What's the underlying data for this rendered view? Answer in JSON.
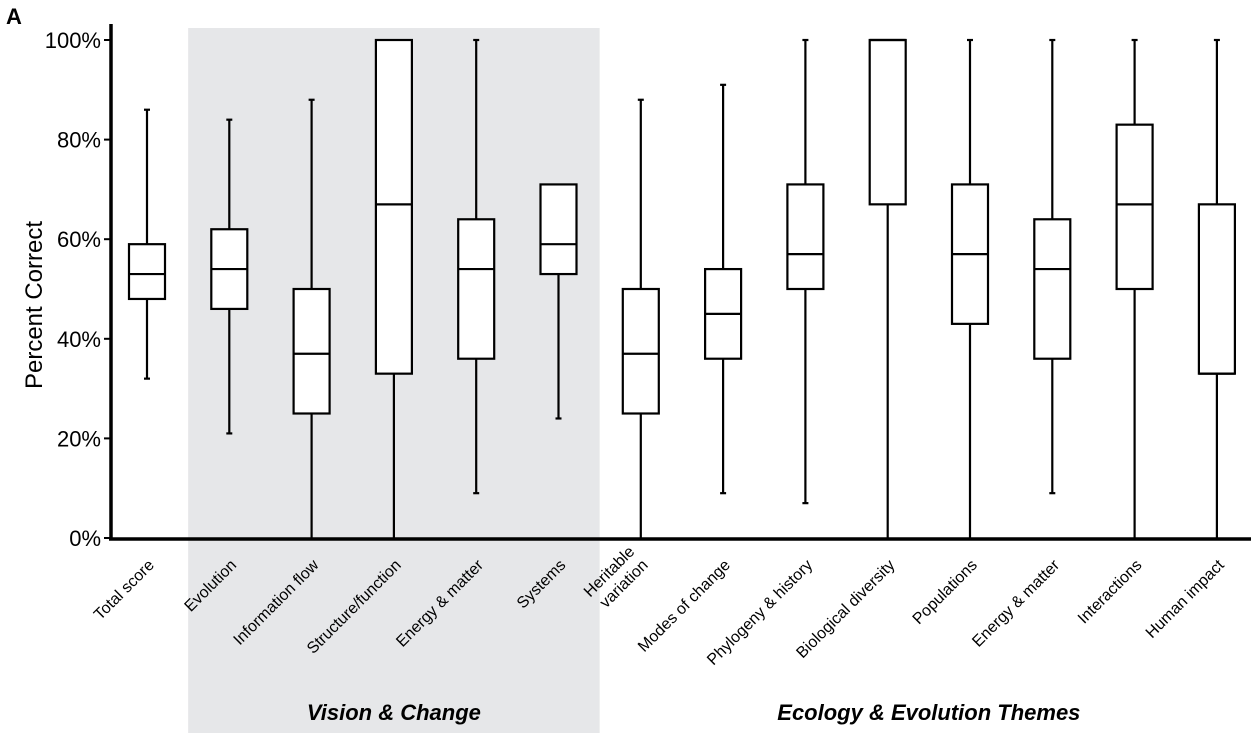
{
  "chart_data": {
    "type": "box",
    "panel_label": "A",
    "ylabel": "Percent Correct",
    "ylim": [
      0,
      100
    ],
    "yticks": [
      {
        "value": 0,
        "label": "0%"
      },
      {
        "value": 20,
        "label": "20%"
      },
      {
        "value": 40,
        "label": "40%"
      },
      {
        "value": 60,
        "label": "60%"
      },
      {
        "value": 80,
        "label": "80%"
      },
      {
        "value": 100,
        "label": "100%"
      }
    ],
    "categories": [
      {
        "label": [
          "Total score"
        ],
        "min": 32,
        "q1": 48,
        "median": 53,
        "q3": 59,
        "max": 86
      },
      {
        "label": [
          "Evolution"
        ],
        "min": 21,
        "q1": 46,
        "median": 54,
        "q3": 62,
        "max": 84
      },
      {
        "label": [
          "Information flow"
        ],
        "min": 0,
        "q1": 25,
        "median": 37,
        "q3": 50,
        "max": 88
      },
      {
        "label": [
          "Structure/function"
        ],
        "min": 0,
        "q1": 33,
        "median": 67,
        "q3": 100,
        "max": 100
      },
      {
        "label": [
          "Energy & matter"
        ],
        "min": 9,
        "q1": 36,
        "median": 54,
        "q3": 64,
        "max": 100
      },
      {
        "label": [
          "Systems"
        ],
        "min": 24,
        "q1": 53,
        "median": 59,
        "q3": 71,
        "max": 71
      },
      {
        "label": [
          "Heritable",
          "variation"
        ],
        "min": 0,
        "q1": 25,
        "median": 37,
        "q3": 50,
        "max": 88
      },
      {
        "label": [
          "Modes of change"
        ],
        "min": 9,
        "q1": 36,
        "median": 45,
        "q3": 54,
        "max": 91
      },
      {
        "label": [
          "Phylogeny & history"
        ],
        "min": 7,
        "q1": 50,
        "median": 57,
        "q3": 71,
        "max": 100
      },
      {
        "label": [
          "Biological diversity"
        ],
        "min": 0,
        "q1": 67,
        "median": 100,
        "q3": 100,
        "max": 100
      },
      {
        "label": [
          "Populations"
        ],
        "min": 0,
        "q1": 43,
        "median": 57,
        "q3": 71,
        "max": 100
      },
      {
        "label": [
          "Energy & matter"
        ],
        "min": 9,
        "q1": 36,
        "median": 54,
        "q3": 64,
        "max": 100
      },
      {
        "label": [
          "Interactions"
        ],
        "min": 0,
        "q1": 50,
        "median": 67,
        "q3": 83,
        "max": 100
      },
      {
        "label": [
          "Human impact"
        ],
        "min": 0,
        "q1": 33,
        "median": 33,
        "q3": 67,
        "max": 100
      }
    ],
    "groups": [
      {
        "label": "Vision & Change",
        "start": 1,
        "end": 5,
        "shaded": true
      },
      {
        "label": "Ecology & Evolution Themes",
        "start": 6,
        "end": 13,
        "shaded": false
      }
    ],
    "shade_color": "#e6e7e9",
    "grid": false,
    "legend": "none"
  }
}
